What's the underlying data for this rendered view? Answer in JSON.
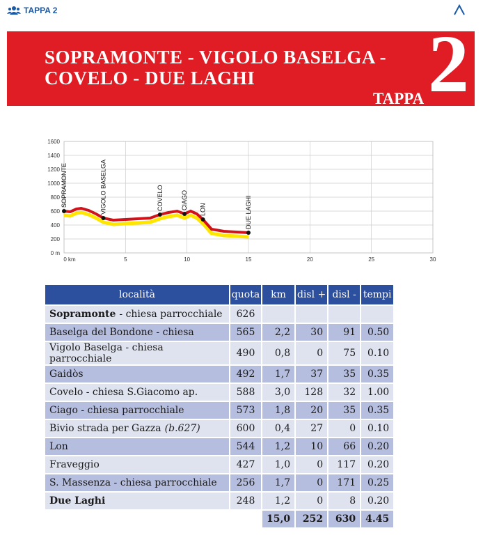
{
  "header": {
    "label": "TAPPA 2"
  },
  "banner": {
    "title_lines": [
      "SOPRAMONTE - VIGOLO BASELGA -",
      "COVELO - DUE LAGHI"
    ],
    "stage_word": "TAPPA",
    "stage_number": "2"
  },
  "chart_data": {
    "type": "line",
    "x": [
      0,
      0.5,
      1,
      1.4,
      2,
      2.6,
      3.2,
      4,
      5,
      6,
      7,
      7.8,
      8.5,
      9.2,
      9.8,
      10.3,
      10.8,
      11.3,
      12,
      13,
      14,
      15
    ],
    "series": [
      {
        "color": "#d0121b",
        "values": [
          600,
          590,
          630,
          640,
          610,
          560,
          500,
          470,
          480,
          490,
          500,
          550,
          580,
          600,
          560,
          600,
          560,
          480,
          340,
          310,
          300,
          290
        ]
      }
    ],
    "waypoints": {
      "names": [
        "SOPRAMONTE",
        "VIGOLO BASELGA",
        "COVELO",
        "CIAGO",
        "LON",
        "DUE LAGHI"
      ],
      "x": [
        0,
        3.2,
        7.8,
        9.8,
        11.3,
        15
      ],
      "y": [
        600,
        500,
        550,
        560,
        480,
        290
      ]
    },
    "xlim": [
      0,
      30
    ],
    "ylim": [
      0,
      1600
    ],
    "xticks": [
      {
        "value": 0,
        "label": "0 km"
      },
      5,
      10,
      15,
      20,
      25,
      30
    ],
    "yticks": [
      {
        "value": 0,
        "label": "0 m"
      },
      200,
      400,
      600,
      800,
      1000,
      1200,
      1400,
      1600
    ],
    "grid": true
  },
  "table": {
    "columns": [
      "località",
      "quota",
      "km",
      "disl +",
      "disl -",
      "tempi"
    ],
    "rows": [
      [
        {
          "bold": "Sopramonte",
          "text": "- chiesa parrocchiale"
        },
        "626",
        null,
        null,
        null,
        null
      ],
      [
        {
          "text": "Baselga del Bondone - chiesa"
        },
        "565",
        "2,2",
        "30",
        "91",
        "0.50"
      ],
      [
        {
          "text": "Vigolo Baselga - chiesa parrocchiale"
        },
        "490",
        "0,8",
        "0",
        "75",
        "0.10"
      ],
      [
        {
          "text": "Gaidòs"
        },
        "492",
        "1,7",
        "37",
        "35",
        "0.35"
      ],
      [
        {
          "text": "Covelo - chiesa S.Giacomo ap."
        },
        "588",
        "3,0",
        "128",
        "32",
        "1.00"
      ],
      [
        {
          "text": "Ciago - chiesa parrocchiale"
        },
        "573",
        "1,8",
        "20",
        "35",
        "0.35"
      ],
      [
        {
          "text": "Bivio strada per Gazza",
          "italic": "(b.627)"
        },
        "600",
        "0,4",
        "27",
        "0",
        "0.10"
      ],
      [
        {
          "text": "Lon"
        },
        "544",
        "1,2",
        "10",
        "66",
        "0.20"
      ],
      [
        {
          "text": "Fraveggio"
        },
        "427",
        "1,0",
        "0",
        "117",
        "0.20"
      ],
      [
        {
          "text": "S. Massenza - chiesa parrocchiale"
        },
        "256",
        "1,7",
        "0",
        "171",
        "0.25"
      ],
      [
        {
          "bold": "Due Laghi"
        },
        "248",
        "1,2",
        "0",
        "8",
        "0.20"
      ]
    ],
    "totals": [
      "15,0",
      "252",
      "630",
      "4.45"
    ]
  }
}
